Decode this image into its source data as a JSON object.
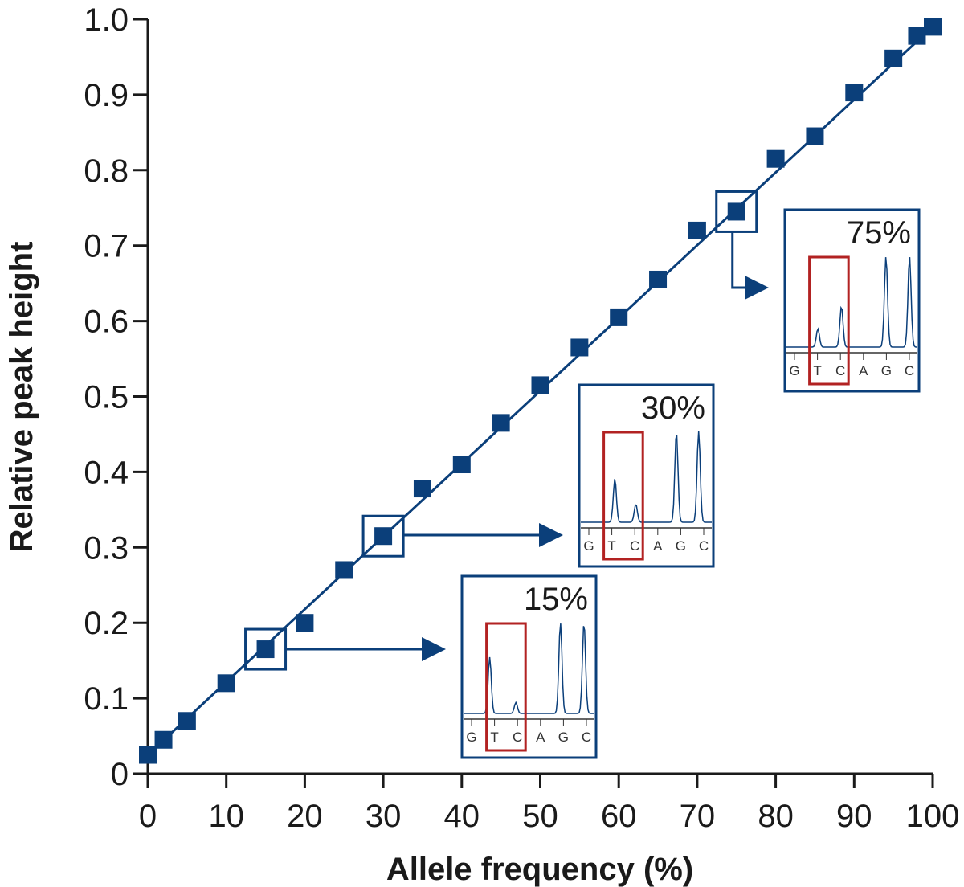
{
  "colors": {
    "series": "#0b3f7a",
    "highlight": "#b22222",
    "axis": "#1a1a1a",
    "background": "#ffffff"
  },
  "chart_data": {
    "type": "line",
    "title": "",
    "xlabel": "Allele frequency (%)",
    "ylabel": "Relative peak height",
    "xlim": [
      0,
      100
    ],
    "ylim": [
      0,
      1.0
    ],
    "xticks": [
      0,
      10,
      20,
      30,
      40,
      50,
      60,
      70,
      80,
      90,
      100
    ],
    "yticks": [
      0,
      0.1,
      0.2,
      0.3,
      0.4,
      0.5,
      0.6,
      0.7,
      0.8,
      0.9,
      1.0
    ],
    "xtick_labels": [
      "0",
      "10",
      "20",
      "30",
      "40",
      "50",
      "60",
      "70",
      "80",
      "90",
      "100"
    ],
    "ytick_labels": [
      "0",
      "0.1",
      "0.2",
      "0.3",
      "0.4",
      "0.5",
      "0.6",
      "0.7",
      "0.8",
      "0.9",
      "1.0"
    ],
    "grid": false,
    "legend": "none",
    "marker": "square",
    "fit_line": {
      "x": [
        0,
        100
      ],
      "y": [
        0.025,
        0.99
      ]
    },
    "series": [
      {
        "x": [
          0,
          2,
          5,
          10,
          15,
          20,
          25,
          30,
          35,
          40,
          45,
          50,
          55,
          60,
          65,
          70,
          75,
          80,
          85,
          90,
          95,
          98,
          100
        ],
        "y": [
          0.025,
          0.045,
          0.07,
          0.12,
          0.165,
          0.2,
          0.27,
          0.315,
          0.378,
          0.41,
          0.465,
          0.515,
          0.565,
          0.605,
          0.655,
          0.72,
          0.745,
          0.815,
          0.845,
          0.903,
          0.948,
          0.978,
          0.99
        ]
      }
    ],
    "insets": [
      {
        "label": "15%",
        "highlight_x": 15,
        "bases": [
          "G",
          "T",
          "C",
          "A",
          "G",
          "C"
        ]
      },
      {
        "label": "30%",
        "highlight_x": 30,
        "bases": [
          "G",
          "T",
          "C",
          "A",
          "G",
          "C"
        ]
      },
      {
        "label": "75%",
        "highlight_x": 75,
        "bases": [
          "G",
          "T",
          "C",
          "A",
          "G",
          "C"
        ]
      }
    ]
  }
}
